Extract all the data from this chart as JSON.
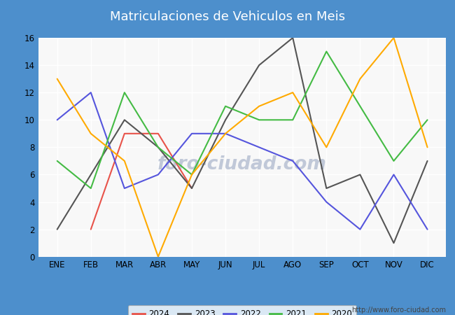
{
  "title": "Matriculaciones de Vehiculos en Meis",
  "title_bg_color": "#4d8fcc",
  "title_text_color": "#ffffff",
  "ylim": [
    0,
    16
  ],
  "yticks": [
    0,
    2,
    4,
    6,
    8,
    10,
    12,
    14,
    16
  ],
  "months": [
    "ENE",
    "FEB",
    "MAR",
    "ABR",
    "MAY",
    "JUN",
    "JUL",
    "AGO",
    "SEP",
    "OCT",
    "NOV",
    "DIC"
  ],
  "series": {
    "2024": {
      "color": "#e8534a",
      "data": [
        null,
        2,
        9,
        9,
        5,
        null,
        null,
        null,
        null,
        null,
        null,
        null
      ]
    },
    "2023": {
      "color": "#555555",
      "data": [
        2,
        6,
        10,
        8,
        5,
        10,
        14,
        16,
        5,
        6,
        1,
        7
      ]
    },
    "2022": {
      "color": "#5555dd",
      "data": [
        10,
        12,
        5,
        6,
        9,
        9,
        8,
        7,
        4,
        2,
        6,
        2
      ]
    },
    "2021": {
      "color": "#44bb44",
      "data": [
        7,
        5,
        12,
        8,
        6,
        11,
        10,
        10,
        15,
        11,
        7,
        10
      ]
    },
    "2020": {
      "color": "#ffaa00",
      "data": [
        13,
        9,
        7,
        0,
        6,
        9,
        11,
        12,
        8,
        13,
        16,
        8
      ]
    }
  },
  "footer_url": "http://www.foro-ciudad.com",
  "outer_bg_color": "#4d8fcc",
  "plot_bg_color": "#f0f0f0",
  "inner_bg_color": "#f8f8f8",
  "grid_color": "#ffffff",
  "legend_years": [
    "2024",
    "2023",
    "2022",
    "2021",
    "2020"
  ],
  "watermark_text": "foro-ciudad.com",
  "watermark_color": "#c0c8d8"
}
